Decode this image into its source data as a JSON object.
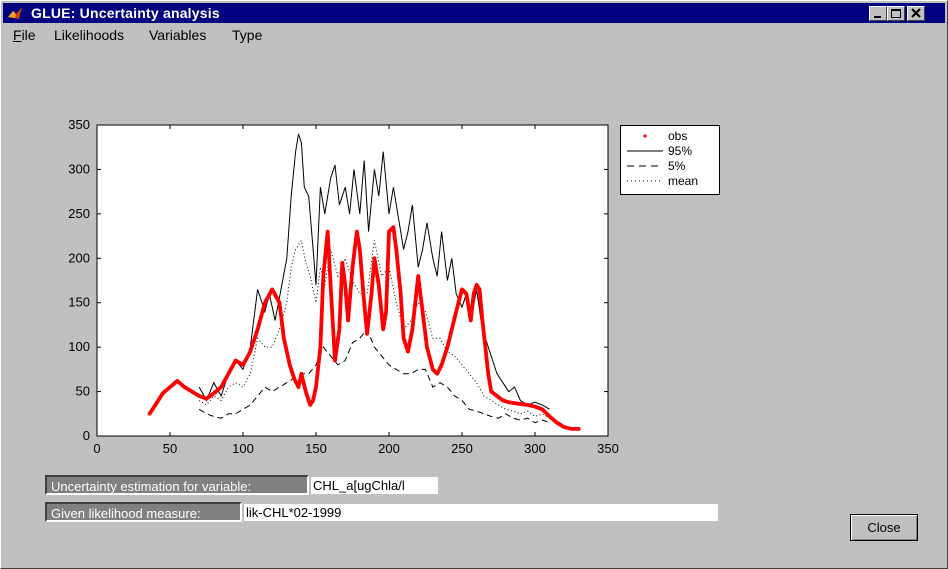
{
  "window": {
    "title": "GLUE: Uncertainty analysis"
  },
  "menu": [
    {
      "label": "File",
      "ul": "F",
      "rest": "ile"
    },
    {
      "label": "Likelihoods",
      "ul": "",
      "rest": "Likelihoods"
    },
    {
      "label": "Variables",
      "ul": "",
      "rest": "Variables"
    },
    {
      "label": "Type",
      "ul": "",
      "rest": "Type"
    }
  ],
  "controls": {
    "variable_label": "Uncertainty estimation for variable:",
    "variable_value": "CHL_a[ugChla/l",
    "likelihood_label": "Given likelihood measure:",
    "likelihood_value": "lik-CHL*02-1999",
    "close_label": "Close"
  },
  "colors": {
    "obs": "#ff0000",
    "titlebar": "#000080",
    "face": "#c0c0c0"
  },
  "chart_data": {
    "type": "line",
    "xlim": [
      0,
      350
    ],
    "ylim": [
      0,
      350
    ],
    "xticks": [
      0,
      50,
      100,
      150,
      200,
      250,
      300,
      350
    ],
    "yticks": [
      0,
      50,
      100,
      150,
      200,
      250,
      300,
      350
    ],
    "grid": false,
    "legend_position": "outside-right-top",
    "legend": [
      "obs",
      "95%",
      "5%",
      "mean"
    ],
    "series": [
      {
        "name": "obs",
        "style": "red-points",
        "x": [
          36,
          40,
          45,
          50,
          55,
          60,
          65,
          70,
          75,
          80,
          85,
          90,
          95,
          100,
          105,
          110,
          115,
          120,
          125,
          128,
          132,
          135,
          138,
          140,
          143,
          146,
          148,
          150,
          153,
          155,
          158,
          160,
          163,
          166,
          168,
          170,
          172,
          175,
          178,
          180,
          183,
          185,
          188,
          190,
          193,
          196,
          198,
          200,
          203,
          205,
          208,
          210,
          213,
          216,
          220,
          223,
          226,
          230,
          233,
          236,
          240,
          243,
          246,
          250,
          253,
          256,
          258,
          260,
          262,
          264,
          266,
          268,
          270,
          274,
          278,
          282,
          286,
          290,
          295,
          300,
          305,
          310,
          315,
          320,
          325,
          330
        ],
        "y": [
          25,
          35,
          48,
          55,
          62,
          55,
          50,
          45,
          42,
          48,
          55,
          70,
          85,
          80,
          95,
          120,
          150,
          165,
          150,
          110,
          80,
          65,
          55,
          70,
          50,
          35,
          40,
          55,
          100,
          180,
          230,
          170,
          85,
          120,
          195,
          170,
          130,
          190,
          230,
          210,
          150,
          115,
          160,
          200,
          170,
          120,
          140,
          230,
          235,
          210,
          160,
          110,
          95,
          120,
          180,
          140,
          100,
          75,
          70,
          80,
          100,
          120,
          140,
          165,
          160,
          130,
          160,
          170,
          165,
          130,
          100,
          70,
          50,
          45,
          40,
          38,
          37,
          36,
          35,
          33,
          30,
          22,
          15,
          10,
          8,
          8
        ]
      },
      {
        "name": "95%",
        "style": "solid",
        "x": [
          70,
          75,
          80,
          85,
          90,
          95,
          100,
          105,
          110,
          115,
          118,
          122,
          126,
          130,
          133,
          136,
          138,
          140,
          142,
          145,
          148,
          150,
          153,
          156,
          160,
          163,
          166,
          170,
          173,
          176,
          180,
          183,
          186,
          190,
          193,
          196,
          200,
          203,
          206,
          210,
          213,
          216,
          220,
          223,
          226,
          230,
          233,
          236,
          240,
          243,
          246,
          250,
          253,
          256,
          260,
          263,
          266,
          270,
          274,
          278,
          282,
          286,
          290,
          295,
          300,
          305,
          310
        ],
        "y": [
          55,
          40,
          60,
          45,
          70,
          85,
          75,
          100,
          165,
          140,
          160,
          130,
          165,
          200,
          270,
          320,
          340,
          330,
          280,
          270,
          210,
          170,
          280,
          250,
          290,
          305,
          260,
          280,
          250,
          300,
          250,
          310,
          230,
          300,
          270,
          320,
          250,
          280,
          250,
          210,
          230,
          260,
          190,
          210,
          240,
          200,
          180,
          230,
          175,
          200,
          160,
          145,
          160,
          130,
          165,
          130,
          110,
          90,
          70,
          60,
          50,
          55,
          40,
          35,
          38,
          35,
          30
        ]
      },
      {
        "name": "5%",
        "style": "dashed",
        "x": [
          70,
          75,
          80,
          85,
          90,
          95,
          100,
          105,
          110,
          115,
          120,
          125,
          130,
          135,
          140,
          145,
          150,
          155,
          160,
          165,
          170,
          175,
          180,
          185,
          190,
          195,
          200,
          205,
          210,
          215,
          220,
          225,
          230,
          235,
          240,
          245,
          250,
          255,
          260,
          265,
          270,
          275,
          280,
          285,
          290,
          295,
          300,
          305,
          310
        ],
        "y": [
          30,
          25,
          22,
          20,
          25,
          25,
          30,
          35,
          45,
          55,
          50,
          55,
          60,
          65,
          70,
          70,
          80,
          100,
          90,
          80,
          85,
          105,
          110,
          120,
          100,
          90,
          80,
          75,
          70,
          70,
          75,
          75,
          55,
          60,
          55,
          45,
          40,
          30,
          28,
          25,
          22,
          20,
          25,
          20,
          18,
          20,
          15,
          18,
          15
        ]
      },
      {
        "name": "mean",
        "style": "dotted",
        "x": [
          70,
          75,
          80,
          85,
          90,
          95,
          100,
          105,
          110,
          115,
          120,
          125,
          130,
          133,
          136,
          140,
          143,
          146,
          150,
          153,
          156,
          160,
          165,
          170,
          175,
          180,
          185,
          190,
          195,
          200,
          205,
          210,
          215,
          220,
          225,
          230,
          235,
          240,
          245,
          250,
          255,
          260,
          265,
          270,
          275,
          280,
          285,
          290,
          295,
          300,
          305,
          310
        ],
        "y": [
          40,
          35,
          45,
          40,
          55,
          60,
          55,
          70,
          110,
          100,
          100,
          120,
          150,
          190,
          210,
          220,
          195,
          180,
          150,
          190,
          170,
          210,
          180,
          200,
          175,
          160,
          160,
          220,
          180,
          190,
          150,
          120,
          130,
          150,
          140,
          110,
          110,
          95,
          90,
          80,
          70,
          60,
          45,
          40,
          35,
          30,
          28,
          25,
          28,
          22,
          25,
          20
        ]
      }
    ]
  }
}
